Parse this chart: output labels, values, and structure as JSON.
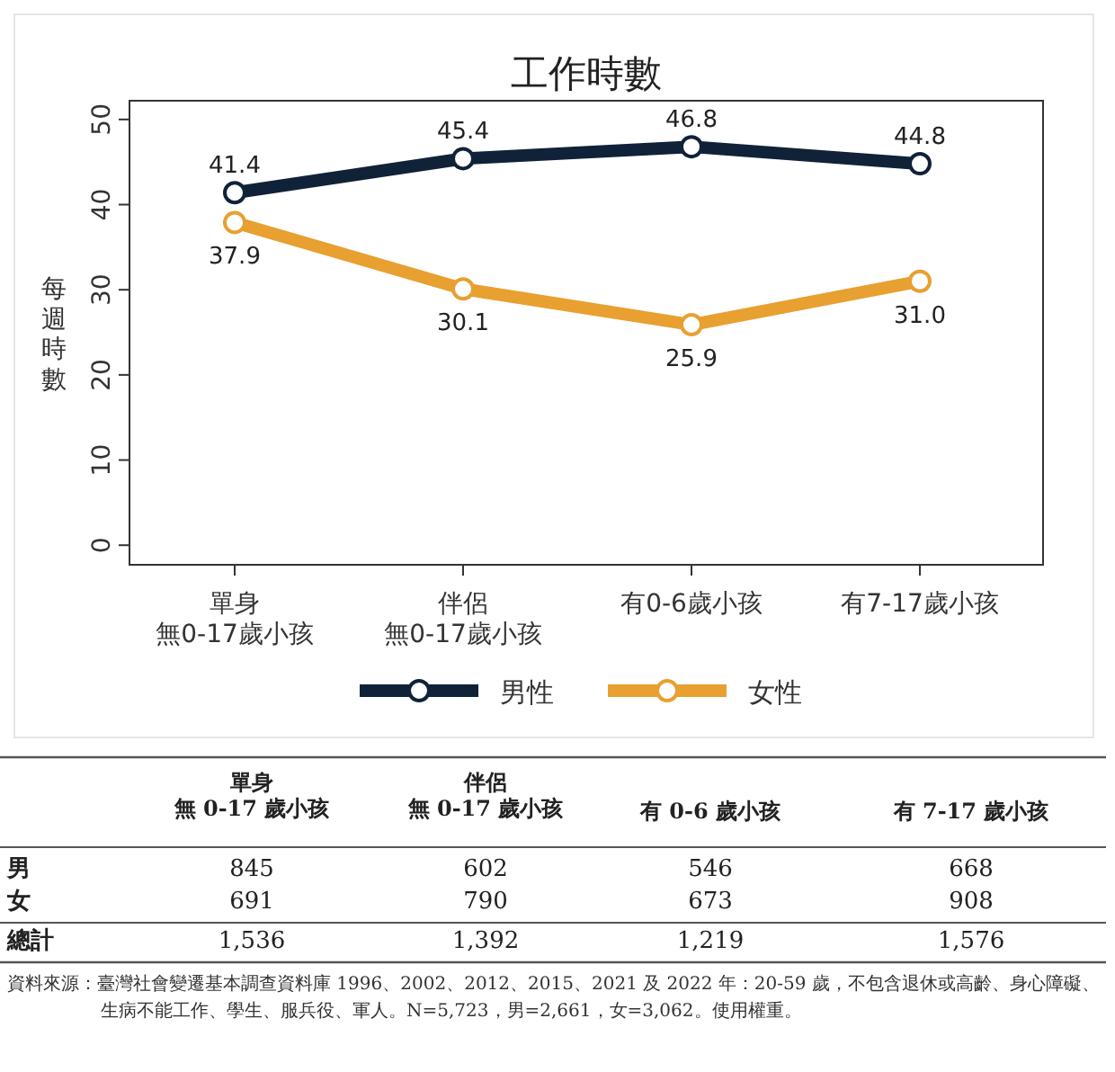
{
  "chart_data": [
    {
      "type": "line",
      "title": "工作時數",
      "ylabel": "每週時數",
      "categories": [
        "單身無0-17歲小孩",
        "伴侶無0-17歲小孩",
        "有0-6歲小孩",
        "有7-17歲小孩"
      ],
      "series": [
        {
          "name": "男性",
          "color": "#0f2238",
          "values": [
            41.4,
            45.4,
            46.8,
            44.8
          ],
          "value_labels": [
            "41.4",
            "45.4",
            "46.8",
            "44.8"
          ]
        },
        {
          "name": "女性",
          "color": "#e8a030",
          "values": [
            37.9,
            30.1,
            25.9,
            31.0
          ],
          "value_labels": [
            "37.9",
            "30.1",
            "25.9",
            "31.0"
          ]
        }
      ],
      "ylim": [
        -2.3,
        52.2
      ],
      "yticks": [
        0,
        10,
        20,
        30,
        40,
        50
      ],
      "marker": "circle",
      "legend": "bottom",
      "data_labels": true
    },
    {
      "type": "other",
      "categories": [
        "單身無 0-17 歲小孩",
        "伴侶無 0-17 歲小孩",
        "有 0-6 歲小孩",
        "有 7-17 歲小孩"
      ],
      "series": [
        {
          "name": "男",
          "values": [
            845,
            602,
            546,
            668
          ]
        },
        {
          "name": "女",
          "values": [
            691,
            790,
            673,
            908
          ]
        },
        {
          "name": "總計",
          "values": [
            1536,
            1392,
            1219,
            1576
          ],
          "value_labels": [
            "1,536",
            "1,392",
            "1,219",
            "1,576"
          ]
        }
      ],
      "data_labels": true,
      "annotations": [
        "資料來源：臺灣社會變遷基本調查資料庫 1996、2002、2012、2015、2021 及 2022 年：20-59 歲，不包含退休或高齡、身心障礙、生病不能工作、學生、服兵役、軍人。N=5,723，男=2,661，女=3,062。使用權重。"
      ]
    }
  ]
}
